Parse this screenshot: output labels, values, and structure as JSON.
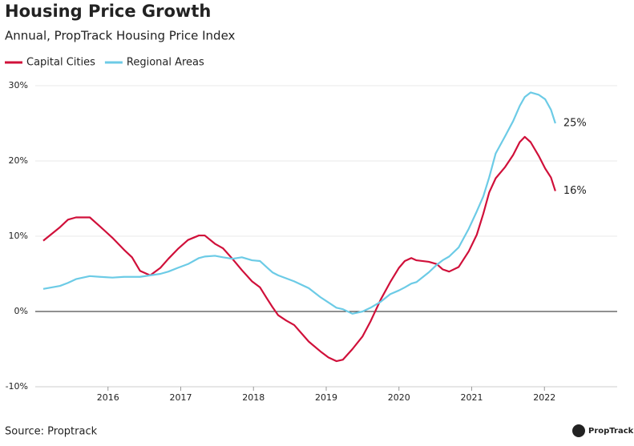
{
  "chart_data": {
    "type": "line",
    "title": "Housing Price Growth",
    "subtitle": "Annual, PropTrack Housing Price Index",
    "source": "Source: Proptrack",
    "brand": "PropTrack",
    "x": [
      2015.11,
      2015.34,
      2015.45,
      2015.56,
      2015.75,
      2015.89,
      2016.06,
      2016.22,
      2016.33,
      2016.44,
      2016.58,
      2016.72,
      2016.83,
      2016.96,
      2017.1,
      2017.25,
      2017.33,
      2017.47,
      2017.58,
      2017.71,
      2017.84,
      2017.98,
      2018.09,
      2018.18,
      2018.26,
      2018.34,
      2018.45,
      2018.56,
      2018.76,
      2018.92,
      2019.03,
      2019.14,
      2019.23,
      2019.36,
      2019.5,
      2019.61,
      2019.75,
      2019.88,
      2020.0,
      2020.08,
      2020.17,
      2020.24,
      2020.41,
      2020.52,
      2020.6,
      2020.69,
      2020.82,
      2020.96,
      2021.07,
      2021.16,
      2021.24,
      2021.33,
      2021.46,
      2021.57,
      2021.66,
      2021.73,
      2021.81,
      2021.92,
      2022.01,
      2022.09,
      2022.15
    ],
    "series": [
      {
        "name": "Capital Cities",
        "color": "#d0103a",
        "values": [
          9.4,
          11.2,
          12.2,
          12.5,
          12.5,
          11.3,
          9.8,
          8.2,
          7.2,
          5.4,
          4.8,
          5.8,
          7.0,
          8.3,
          9.5,
          10.1,
          10.1,
          9.0,
          8.4,
          7.0,
          5.5,
          4.0,
          3.2,
          1.8,
          0.6,
          -0.5,
          -1.2,
          -1.8,
          -4.0,
          -5.3,
          -6.1,
          -6.6,
          -6.4,
          -5.0,
          -3.3,
          -1.3,
          1.6,
          3.9,
          5.8,
          6.7,
          7.1,
          6.8,
          6.6,
          6.3,
          5.6,
          5.3,
          5.9,
          8.0,
          10.2,
          13.0,
          15.8,
          17.7,
          19.2,
          20.8,
          22.5,
          23.2,
          22.5,
          20.7,
          19.0,
          17.8,
          16
        ],
        "value_labels": [
          null,
          null,
          null,
          null,
          null,
          null,
          null,
          null,
          null,
          null,
          null,
          null,
          null,
          null,
          null,
          null,
          null,
          null,
          null,
          null,
          null,
          null,
          null,
          null,
          null,
          null,
          null,
          null,
          null,
          null,
          null,
          null,
          null,
          null,
          null,
          null,
          null,
          null,
          null,
          null,
          null,
          null,
          null,
          null,
          null,
          null,
          null,
          null,
          null,
          null,
          null,
          null,
          null,
          null,
          null,
          null,
          null,
          null,
          null,
          null,
          "16%"
        ]
      },
      {
        "name": "Regional Areas",
        "color": "#6ccbe6",
        "values": [
          3.0,
          3.4,
          3.8,
          4.3,
          4.7,
          4.6,
          4.5,
          4.6,
          4.6,
          4.6,
          4.8,
          5.0,
          5.3,
          5.8,
          6.3,
          7.1,
          7.3,
          7.4,
          7.2,
          7.0,
          7.2,
          6.8,
          6.7,
          5.9,
          5.2,
          4.8,
          4.4,
          4.0,
          3.1,
          1.9,
          1.2,
          0.5,
          0.3,
          -0.3,
          0.0,
          0.5,
          1.3,
          2.3,
          2.8,
          3.2,
          3.7,
          3.9,
          5.2,
          6.2,
          6.8,
          7.3,
          8.5,
          11.0,
          13.3,
          15.3,
          17.8,
          21.0,
          23.3,
          25.3,
          27.3,
          28.5,
          29.1,
          28.8,
          28.2,
          26.8,
          25
        ],
        "value_labels": [
          null,
          null,
          null,
          null,
          null,
          null,
          null,
          null,
          null,
          null,
          null,
          null,
          null,
          null,
          null,
          null,
          null,
          null,
          null,
          null,
          null,
          null,
          null,
          null,
          null,
          null,
          null,
          null,
          null,
          null,
          null,
          null,
          null,
          null,
          null,
          null,
          null,
          null,
          null,
          null,
          null,
          null,
          null,
          null,
          null,
          null,
          null,
          null,
          null,
          null,
          null,
          null,
          null,
          null,
          null,
          null,
          null,
          null,
          null,
          null,
          "25%"
        ]
      }
    ],
    "xlim": [
      2015,
      2023
    ],
    "xticks": [
      2016,
      2017,
      2018,
      2019,
      2020,
      2021,
      2022
    ],
    "ylim": [
      -10,
      30
    ],
    "yticks": [
      {
        "value": -10,
        "label": "-10%"
      },
      {
        "value": 0,
        "label": "0%"
      },
      {
        "value": 10,
        "label": "10%"
      },
      {
        "value": 20,
        "label": "20%"
      },
      {
        "value": 30,
        "label": "30%"
      }
    ],
    "grid": true,
    "legend": "top-left"
  }
}
